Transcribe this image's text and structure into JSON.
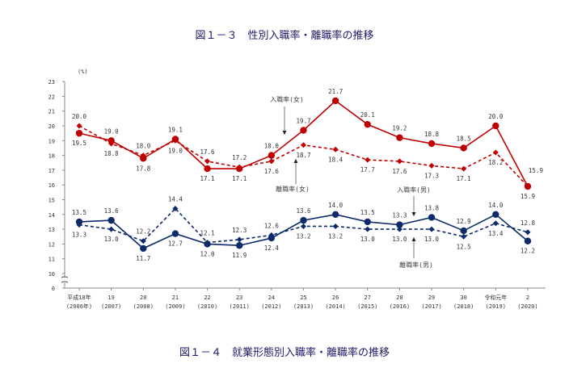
{
  "figure_title": "図１－３　性別入職率・離職率の推移",
  "next_figure_title": "図１－４　就業形態別入職率・離職率の推移",
  "chart_data": {
    "type": "line",
    "title": "性別入職率・離職率の推移",
    "ylabel": "(%)",
    "ylim": [
      0,
      23
    ],
    "axis_break": [
      0,
      10
    ],
    "yticks": [
      0,
      10,
      11,
      12,
      13,
      14,
      15,
      16,
      17,
      18,
      19,
      20,
      21,
      22,
      23
    ],
    "categories": [
      [
        "平成18年",
        "(2006年)"
      ],
      [
        "19",
        "(2007)"
      ],
      [
        "20",
        "(2008)"
      ],
      [
        "21",
        "(2009)"
      ],
      [
        "22",
        "(2010)"
      ],
      [
        "23",
        "(2011)"
      ],
      [
        "24",
        "(2012)"
      ],
      [
        "25",
        "(2013)"
      ],
      [
        "26",
        "(2014)"
      ],
      [
        "27",
        "(2015)"
      ],
      [
        "28",
        "(2016)"
      ],
      [
        "29",
        "(2017)"
      ],
      [
        "30",
        "(2018)"
      ],
      [
        "令和元年",
        "(2019)"
      ],
      [
        "2",
        "(2020)"
      ]
    ],
    "series": [
      {
        "name": "入職率(女)",
        "color": "#c00000",
        "style": "solid",
        "marker": "circle",
        "values": [
          19.5,
          19.0,
          17.8,
          19.1,
          17.1,
          17.1,
          18.0,
          19.7,
          21.7,
          20.1,
          19.2,
          18.8,
          18.5,
          20.0,
          15.9
        ]
      },
      {
        "name": "離職率(女)",
        "color": "#c00000",
        "style": "dashed",
        "marker": "diamond",
        "values": [
          20.0,
          18.8,
          18.0,
          19.0,
          17.6,
          17.2,
          17.6,
          18.7,
          18.4,
          17.7,
          17.6,
          17.3,
          17.1,
          18.2,
          15.9
        ]
      },
      {
        "name": "入職率(男)",
        "color": "#0d2a6b",
        "style": "solid",
        "marker": "circle",
        "values": [
          13.5,
          13.6,
          11.7,
          12.7,
          12.0,
          11.9,
          12.4,
          13.6,
          14.0,
          13.5,
          13.3,
          13.8,
          12.9,
          14.0,
          12.2
        ]
      },
      {
        "name": "離職率(男)",
        "color": "#0d2a6b",
        "style": "dashed",
        "marker": "diamond",
        "values": [
          13.3,
          13.0,
          12.2,
          14.4,
          12.1,
          12.3,
          12.6,
          13.2,
          13.2,
          13.0,
          13.0,
          13.0,
          12.5,
          13.4,
          12.8
        ]
      }
    ],
    "annotations": [
      "入職率(女)",
      "離職率(女)",
      "入職率(男)",
      "離職率(男)"
    ]
  }
}
